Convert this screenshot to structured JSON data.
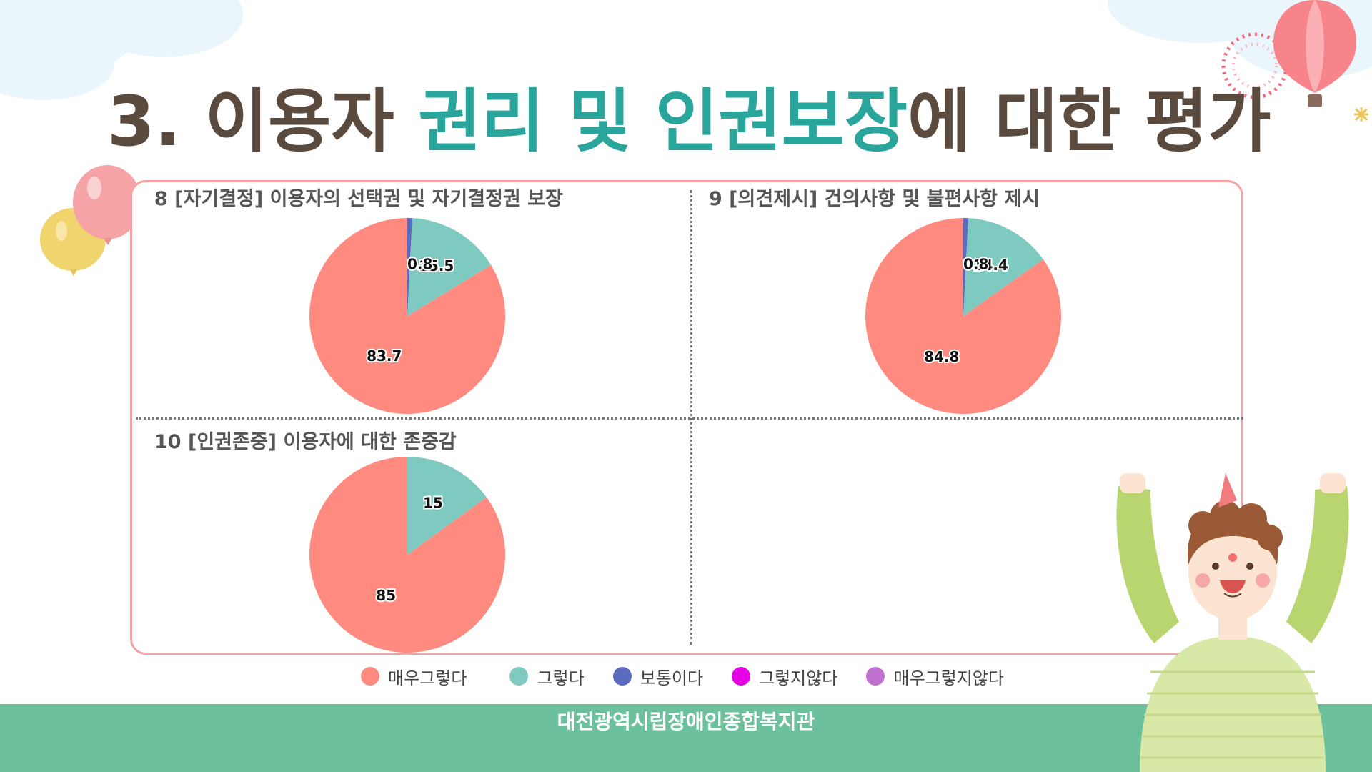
{
  "title": {
    "prefix": "3. 이용자 ",
    "highlight": "권리 및 인권보장",
    "suffix": "에 대한 평가"
  },
  "org_name": "대전광역시립장애인종합복지관",
  "colors": {
    "very_agree": "#ff8a80",
    "agree": "#7fcac0",
    "neutral": "#5c6bc0",
    "disagree": "#e600e6",
    "very_disagree": "#c072d0",
    "title_text": "#5b4a3e",
    "title_highlight": "#2aa59b",
    "panel_border": "#f3a3a3",
    "footer_band": "#6dc09c"
  },
  "legend": [
    {
      "label": "매우그렇다",
      "color": "#ff8a80"
    },
    {
      "label": "그렇다",
      "color": "#7fcac0"
    },
    {
      "label": "보통이다",
      "color": "#5c6bc0"
    },
    {
      "label": "그렇지않다",
      "color": "#e600e6"
    },
    {
      "label": "매우그렇지않다",
      "color": "#c072d0"
    }
  ],
  "chart_data": [
    {
      "type": "pie",
      "title": "8 [자기결정] 이용자의 선택권 및 자기결정권 보장",
      "categories": [
        "매우그렇다",
        "그렇다",
        "보통이다"
      ],
      "values": [
        83.7,
        15.5,
        0.8
      ],
      "labels": [
        "83.7",
        "15.5",
        "0.8"
      ]
    },
    {
      "type": "pie",
      "title": "9 [의견제시] 건의사항 및 불편사항 제시",
      "categories": [
        "매우그렇다",
        "그렇다",
        "보통이다"
      ],
      "values": [
        84.8,
        14.4,
        0.8
      ],
      "labels": [
        "84.8",
        "14.4",
        "0.8"
      ]
    },
    {
      "type": "pie",
      "title": "10 [인권존중] 이용자에 대한 존중감",
      "categories": [
        "매우그렇다",
        "그렇다"
      ],
      "values": [
        85,
        15
      ],
      "labels": [
        "85",
        "15"
      ]
    }
  ]
}
